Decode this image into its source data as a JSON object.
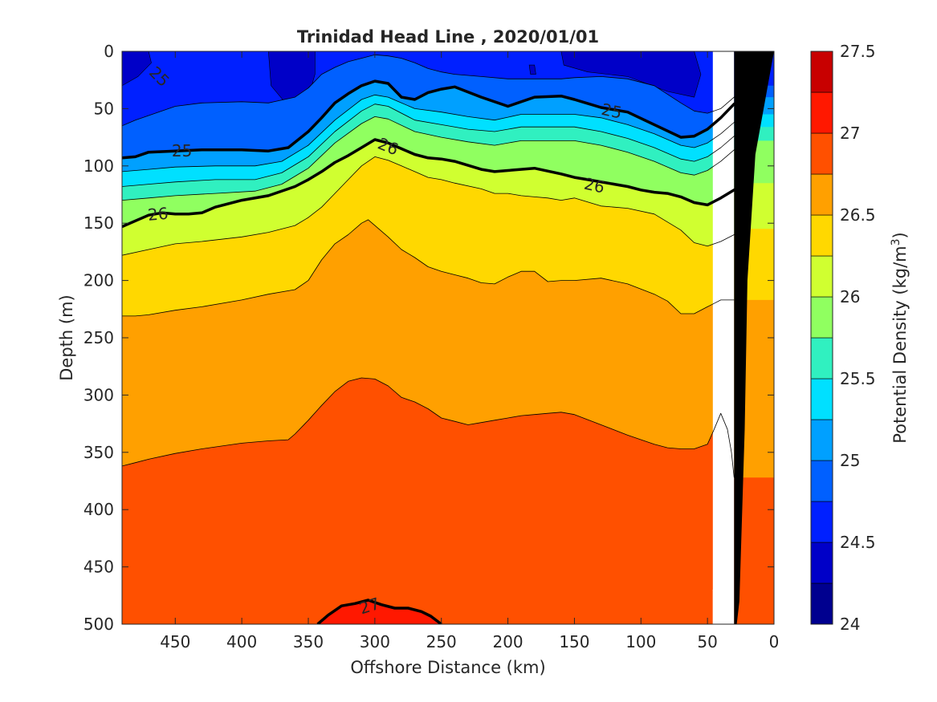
{
  "chart_data": {
    "type": "contour",
    "title": "Trinidad Head Line , 2020/01/01",
    "xlabel": "Offshore Distance (km)",
    "ylabel": "Depth (m)",
    "xlim": [
      490,
      0
    ],
    "ylim": [
      500,
      0
    ],
    "x_reversed": true,
    "y_reversed": true,
    "xticks": [
      450,
      400,
      350,
      300,
      250,
      200,
      150,
      100,
      50,
      0
    ],
    "yticks": [
      0,
      50,
      100,
      150,
      200,
      250,
      300,
      350,
      400,
      450,
      500
    ],
    "colorbar": {
      "label": "Potential Density (kg/m",
      "label_superscript": "3",
      "label_suffix": ")",
      "ticks": [
        24,
        24.5,
        25,
        25.5,
        26,
        26.5,
        27,
        27.5
      ],
      "ticklabels": [
        "24",
        "24.5",
        "25",
        "25.5",
        "26",
        "26.5",
        "27",
        "27.5"
      ],
      "levels": [
        24,
        24.25,
        24.5,
        24.75,
        25,
        25.25,
        25.5,
        25.75,
        26,
        26.25,
        26.5,
        26.75,
        27,
        27.25,
        27.5
      ],
      "colors": [
        "#00008F",
        "#0000C8",
        "#0020FF",
        "#0060FF",
        "#00A0FF",
        "#00E0FF",
        "#30F0C0",
        "#90FF60",
        "#D0FF30",
        "#FFD800",
        "#FFA000",
        "#FF5000",
        "#FF1800",
        "#C80000"
      ]
    },
    "contour_labels": [
      "25",
      "25",
      "26",
      "26",
      "26",
      "27"
    ],
    "isolines": [
      {
        "level": 24.75,
        "x": [
          490,
          480,
          450,
          430,
          400,
          380,
          360,
          350,
          340,
          330,
          320,
          310,
          300,
          290,
          280,
          270,
          260,
          250,
          240,
          220,
          200,
          180,
          160,
          150,
          130,
          110,
          90,
          70,
          60,
          50,
          40,
          30,
          20
        ],
        "y": [
          65,
          60,
          48,
          45,
          44,
          45,
          40,
          32,
          20,
          14,
          9,
          6,
          3,
          4,
          6,
          10,
          15,
          18,
          20,
          22,
          24,
          24,
          24,
          23,
          22,
          24,
          30,
          45,
          52,
          54,
          50,
          40,
          30
        ]
      },
      {
        "level": 25.0,
        "x": [
          490,
          480,
          470,
          450,
          430,
          400,
          380,
          365,
          350,
          340,
          330,
          320,
          310,
          300,
          290,
          280,
          270,
          260,
          250,
          240,
          220,
          200,
          180,
          160,
          150,
          130,
          110,
          90,
          70,
          60,
          50,
          40,
          30,
          20
        ],
        "y": [
          93,
          92,
          88,
          87,
          86,
          86,
          87,
          84,
          70,
          58,
          45,
          37,
          30,
          26,
          28,
          40,
          42,
          36,
          33,
          31,
          40,
          48,
          40,
          39,
          42,
          49,
          53,
          64,
          75,
          74,
          68,
          58,
          46,
          40
        ]
      },
      {
        "level": 25.25,
        "x": [
          490,
          470,
          450,
          420,
          390,
          370,
          350,
          330,
          310,
          300,
          290,
          270,
          250,
          230,
          210,
          190,
          170,
          150,
          130,
          110,
          90,
          70,
          60,
          50,
          40,
          30,
          20
        ],
        "y": [
          105,
          103,
          101,
          100,
          100,
          96,
          82,
          60,
          42,
          38,
          40,
          50,
          53,
          57,
          60,
          55,
          55,
          55,
          58,
          64,
          72,
          82,
          84,
          80,
          72,
          62,
          55
        ]
      },
      {
        "level": 25.5,
        "x": [
          490,
          470,
          450,
          420,
          390,
          370,
          350,
          330,
          310,
          300,
          290,
          270,
          250,
          230,
          210,
          190,
          170,
          150,
          130,
          110,
          90,
          70,
          60,
          50,
          40,
          30,
          20
        ],
        "y": [
          118,
          116,
          114,
          112,
          112,
          106,
          92,
          70,
          52,
          46,
          48,
          60,
          64,
          68,
          70,
          66,
          66,
          66,
          70,
          76,
          84,
          94,
          96,
          92,
          84,
          74,
          66
        ]
      },
      {
        "level": 25.75,
        "x": [
          490,
          470,
          450,
          420,
          390,
          370,
          350,
          330,
          310,
          300,
          290,
          270,
          250,
          230,
          210,
          190,
          170,
          150,
          130,
          110,
          90,
          70,
          60,
          50,
          40,
          30,
          20
        ],
        "y": [
          130,
          128,
          126,
          124,
          122,
          116,
          102,
          80,
          63,
          57,
          59,
          70,
          75,
          79,
          82,
          78,
          78,
          78,
          82,
          88,
          96,
          106,
          108,
          104,
          96,
          86,
          78
        ]
      },
      {
        "level": 26.0,
        "x": [
          490,
          480,
          470,
          460,
          450,
          440,
          430,
          420,
          400,
          380,
          360,
          350,
          340,
          330,
          320,
          310,
          300,
          290,
          280,
          270,
          260,
          250,
          240,
          220,
          210,
          200,
          180,
          160,
          150,
          140,
          120,
          110,
          100,
          90,
          80,
          70,
          60,
          50,
          40,
          30,
          20
        ],
        "y": [
          153,
          148,
          143,
          141,
          142,
          142,
          141,
          136,
          130,
          126,
          118,
          112,
          105,
          97,
          91,
          84,
          77,
          80,
          85,
          90,
          93,
          94,
          96,
          103,
          105,
          104,
          102,
          107,
          110,
          112,
          116,
          118,
          121,
          123,
          124,
          127,
          132,
          134,
          128,
          121,
          115
        ]
      },
      {
        "level": 26.25,
        "x": [
          490,
          470,
          450,
          430,
          400,
          380,
          360,
          350,
          340,
          330,
          320,
          310,
          300,
          290,
          280,
          270,
          260,
          250,
          240,
          220,
          210,
          200,
          190,
          180,
          170,
          160,
          150,
          130,
          110,
          90,
          70,
          60,
          50,
          40,
          30,
          20
        ],
        "y": [
          178,
          173,
          168,
          166,
          162,
          158,
          152,
          145,
          136,
          124,
          112,
          100,
          92,
          95,
          100,
          105,
          110,
          112,
          115,
          120,
          124,
          124,
          126,
          127,
          128,
          130,
          128,
          135,
          137,
          142,
          156,
          167,
          170,
          166,
          160,
          155
        ]
      },
      {
        "level": 26.5,
        "x": [
          490,
          480,
          470,
          450,
          430,
          400,
          380,
          360,
          350,
          340,
          330,
          320,
          310,
          305,
          300,
          290,
          280,
          270,
          260,
          250,
          240,
          230,
          220,
          210,
          200,
          190,
          180,
          170,
          160,
          150,
          130,
          110,
          90,
          80,
          70,
          60,
          50,
          45,
          40,
          30
        ],
        "y": [
          231,
          231,
          230,
          226,
          223,
          217,
          212,
          208,
          200,
          182,
          168,
          160,
          150,
          147,
          152,
          162,
          173,
          180,
          188,
          192,
          195,
          198,
          202,
          203,
          197,
          192,
          192,
          201,
          200,
          200,
          198,
          203,
          212,
          218,
          229,
          229,
          223,
          220,
          217,
          217
        ]
      },
      {
        "level": 26.75,
        "x": [
          490,
          480,
          470,
          450,
          430,
          400,
          380,
          365,
          360,
          350,
          340,
          330,
          320,
          310,
          300,
          290,
          280,
          270,
          260,
          250,
          240,
          230,
          220,
          210,
          200,
          190,
          180,
          170,
          160,
          150,
          130,
          110,
          90,
          80,
          70,
          60,
          50,
          45,
          40,
          35,
          32,
          30
        ],
        "y": [
          362,
          359,
          356,
          351,
          347,
          342,
          340,
          339,
          334,
          322,
          309,
          297,
          288,
          285,
          286,
          292,
          302,
          306,
          312,
          320,
          323,
          326,
          324,
          322,
          320,
          318,
          317,
          316,
          315,
          317,
          326,
          335,
          343,
          346,
          347,
          347,
          343,
          330,
          316,
          330,
          350,
          372
        ]
      },
      {
        "level": 27.0,
        "x": [
          343,
          335,
          325,
          315,
          305,
          295,
          285,
          275,
          265,
          258,
          250
        ],
        "y": [
          500,
          492,
          484,
          482,
          479,
          483,
          486,
          486,
          489,
          493,
          500
        ]
      }
    ],
    "contour_line_bold": [
      25.0,
      26.0,
      27.0
    ],
    "bottom_mask": {
      "x": [
        0,
        14,
        20,
        22,
        26,
        28,
        30,
        30
      ],
      "y": [
        0,
        90,
        200,
        330,
        480,
        500,
        500,
        0
      ]
    },
    "shore_gap": {
      "x": [
        21,
        46,
        46,
        30,
        30,
        21
      ],
      "y": [
        0,
        0,
        500,
        500,
        0,
        0
      ]
    }
  }
}
